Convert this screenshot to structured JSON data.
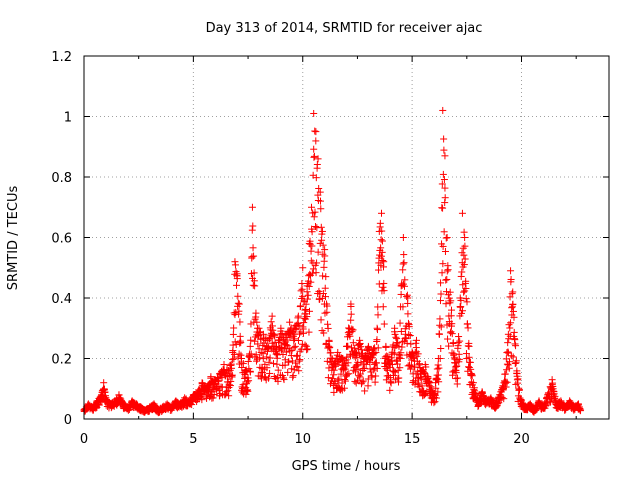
{
  "chart_data": {
    "type": "scatter",
    "title": "Day 313 of 2014, SRMTID for receiver ajac",
    "xlabel": "GPS time / hours",
    "ylabel": "SRMTID / TECUs",
    "xlim": [
      0,
      24
    ],
    "ylim": [
      0,
      1.2
    ],
    "xticks": [
      0,
      5,
      10,
      15,
      20
    ],
    "xtick_labels": [
      "0",
      "5",
      "10",
      "15",
      "20"
    ],
    "yticks": [
      0,
      0.2,
      0.4,
      0.6,
      0.8,
      1.0,
      1.2
    ],
    "ytick_labels": [
      "0",
      "0.2",
      "0.4",
      "0.6",
      "0.8",
      "1",
      "1.2"
    ],
    "grid": true,
    "marker": "plus",
    "color": "#ff0000",
    "series": [
      {
        "name": "SRMTID",
        "x": [
          0.0,
          0.2,
          0.4,
          0.6,
          0.8,
          0.9,
          1.0,
          1.2,
          1.4,
          1.6,
          1.8,
          2.0,
          2.2,
          2.4,
          2.6,
          2.8,
          3.0,
          3.2,
          3.4,
          3.6,
          3.8,
          4.0,
          4.2,
          4.4,
          4.6,
          4.8,
          5.0,
          5.2,
          5.4,
          5.6,
          5.8,
          6.0,
          6.2,
          6.4,
          6.6,
          6.8,
          6.9,
          7.0,
          7.1,
          7.2,
          7.4,
          7.6,
          7.7,
          7.8,
          7.9,
          8.0,
          8.2,
          8.4,
          8.6,
          8.8,
          9.0,
          9.2,
          9.4,
          9.6,
          9.8,
          10.0,
          10.1,
          10.2,
          10.3,
          10.4,
          10.5,
          10.6,
          10.7,
          10.8,
          10.9,
          11.0,
          11.2,
          11.4,
          11.6,
          11.8,
          12.0,
          12.2,
          12.4,
          12.6,
          12.8,
          13.0,
          13.2,
          13.4,
          13.5,
          13.6,
          13.7,
          13.8,
          14.0,
          14.2,
          14.4,
          14.5,
          14.6,
          14.8,
          15.0,
          15.2,
          15.4,
          15.6,
          15.8,
          16.0,
          16.2,
          16.3,
          16.4,
          16.5,
          16.6,
          16.8,
          17.0,
          17.2,
          17.3,
          17.4,
          17.6,
          17.8,
          18.0,
          18.2,
          18.4,
          18.6,
          18.8,
          19.0,
          19.2,
          19.4,
          19.5,
          19.6,
          19.8,
          20.0,
          20.2,
          20.4,
          20.6,
          20.8,
          21.0,
          21.2,
          21.4,
          21.6,
          21.8,
          22.0,
          22.2,
          22.4,
          22.6,
          22.7
        ],
        "y": [
          0.03,
          0.05,
          0.04,
          0.06,
          0.08,
          0.12,
          0.07,
          0.05,
          0.06,
          0.08,
          0.05,
          0.04,
          0.06,
          0.05,
          0.04,
          0.03,
          0.04,
          0.05,
          0.03,
          0.04,
          0.05,
          0.04,
          0.06,
          0.05,
          0.07,
          0.06,
          0.08,
          0.09,
          0.12,
          0.1,
          0.14,
          0.13,
          0.15,
          0.18,
          0.16,
          0.22,
          0.52,
          0.48,
          0.38,
          0.2,
          0.16,
          0.24,
          0.7,
          0.44,
          0.32,
          0.3,
          0.28,
          0.26,
          0.34,
          0.24,
          0.3,
          0.28,
          0.32,
          0.3,
          0.34,
          0.5,
          0.36,
          0.44,
          0.58,
          0.7,
          1.01,
          0.95,
          0.86,
          0.75,
          0.62,
          0.56,
          0.26,
          0.18,
          0.22,
          0.2,
          0.24,
          0.38,
          0.22,
          0.26,
          0.2,
          0.24,
          0.22,
          0.3,
          0.62,
          0.68,
          0.52,
          0.24,
          0.18,
          0.3,
          0.24,
          0.44,
          0.6,
          0.4,
          0.22,
          0.26,
          0.16,
          0.18,
          0.12,
          0.08,
          0.2,
          0.45,
          1.02,
          0.87,
          0.6,
          0.36,
          0.16,
          0.4,
          0.68,
          0.6,
          0.24,
          0.12,
          0.06,
          0.09,
          0.06,
          0.07,
          0.05,
          0.08,
          0.12,
          0.28,
          0.49,
          0.42,
          0.15,
          0.06,
          0.04,
          0.05,
          0.03,
          0.06,
          0.04,
          0.08,
          0.13,
          0.05,
          0.06,
          0.04,
          0.06,
          0.04,
          0.05,
          0.03
        ]
      }
    ]
  }
}
